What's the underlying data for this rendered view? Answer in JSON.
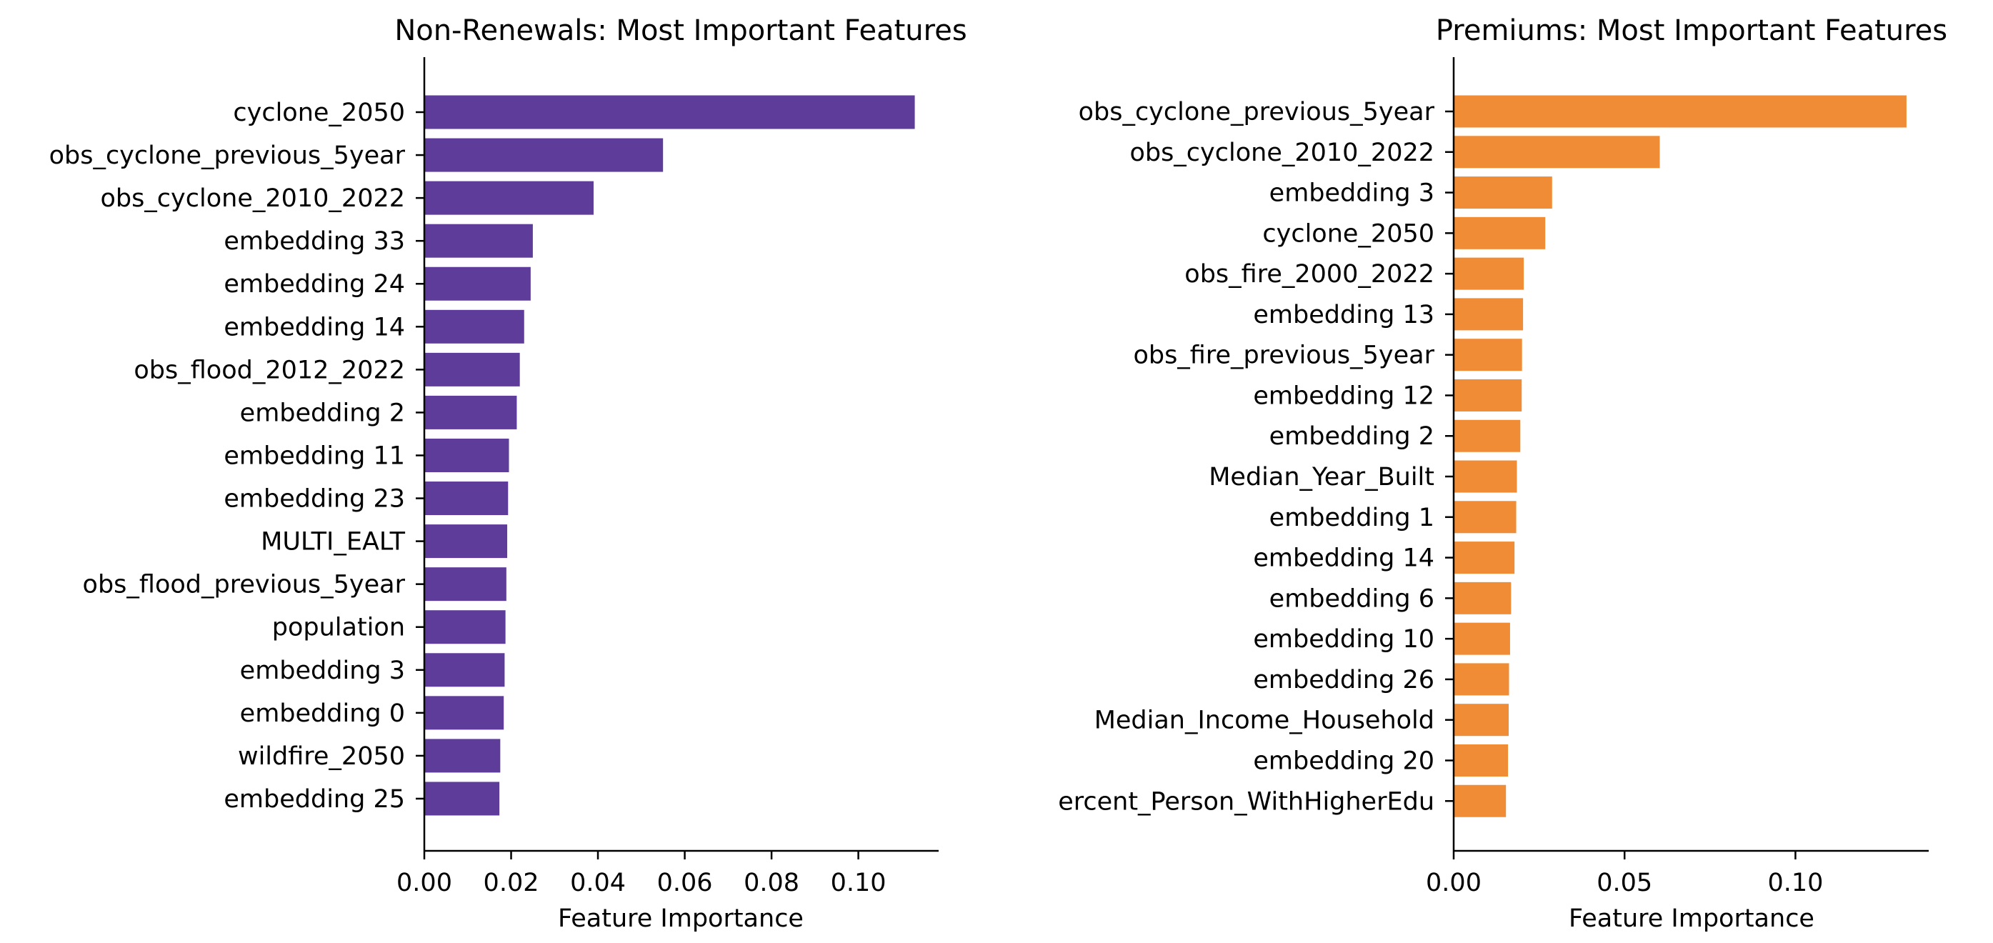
{
  "figure": {
    "background": "#ffffff"
  },
  "chart_data": [
    {
      "type": "bar",
      "orientation": "horizontal",
      "title": "Non-Renewals: Most Important Features",
      "xlabel": "Feature Importance",
      "ylabel": "",
      "xlim": [
        0,
        0.1185
      ],
      "xticks": [
        0.0,
        0.02,
        0.04,
        0.06,
        0.08,
        0.1
      ],
      "xtick_labels": [
        "0.00",
        "0.02",
        "0.04",
        "0.06",
        "0.08",
        "0.10"
      ],
      "grid": false,
      "legend": "none",
      "color": "#5e3c99",
      "categories": [
        "cyclone_2050",
        "obs_cyclone_previous_5year",
        "obs_cyclone_2010_2022",
        "embedding 33",
        "embedding 24",
        "embedding 14",
        "obs_flood_2012_2022",
        "embedding 2",
        "embedding 11",
        "embedding 23",
        "MULTI_EALT",
        "obs_flood_previous_5year",
        "population",
        "embedding 3",
        "embedding 0",
        "wildfire_2050",
        "embedding 25"
      ],
      "values": [
        0.113,
        0.055,
        0.039,
        0.025,
        0.0245,
        0.023,
        0.022,
        0.0213,
        0.0195,
        0.0193,
        0.0191,
        0.0189,
        0.0187,
        0.0185,
        0.0183,
        0.0175,
        0.0173
      ]
    },
    {
      "type": "bar",
      "orientation": "horizontal",
      "title": "Premiums: Most Important Features",
      "xlabel": "Feature Importance",
      "ylabel": "",
      "xlim": [
        0,
        0.139
      ],
      "xticks": [
        0.0,
        0.05,
        0.1
      ],
      "xtick_labels": [
        "0.00",
        "0.05",
        "0.10"
      ],
      "grid": false,
      "legend": "none",
      "color": "#f08c36",
      "categories": [
        "obs_cyclone_previous_5year",
        "obs_cyclone_2010_2022",
        "embedding 3",
        "cyclone_2050",
        "obs_fire_2000_2022",
        "embedding 13",
        "obs_fire_previous_5year",
        "embedding 12",
        "embedding 2",
        "Median_Year_Built",
        "embedding 1",
        "embedding 14",
        "embedding 6",
        "embedding 10",
        "embedding 26",
        "Median_Income_Household",
        "embedding 20",
        "ercent_Person_WithHigherEdu"
      ],
      "values": [
        0.1325,
        0.0603,
        0.0288,
        0.0268,
        0.0205,
        0.0203,
        0.02,
        0.0199,
        0.0195,
        0.0185,
        0.0183,
        0.0178,
        0.0168,
        0.0165,
        0.0162,
        0.0161,
        0.0159,
        0.0153
      ]
    }
  ]
}
